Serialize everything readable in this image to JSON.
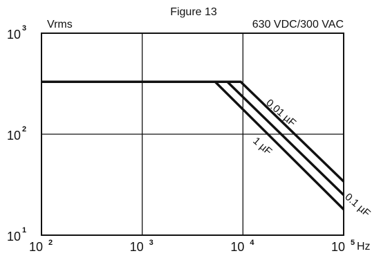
{
  "chart_data": {
    "type": "line",
    "title": "Figure 13",
    "rating": "630 VDC/300 VAC",
    "ylabel": "Vrms",
    "xlabel": "Hz",
    "xscale": "log",
    "yscale": "log",
    "xlim": [
      100,
      100000
    ],
    "ylim": [
      10,
      1000
    ],
    "grid": true,
    "x_ticks": [
      {
        "base": "10",
        "exp": "2"
      },
      {
        "base": "10",
        "exp": "3"
      },
      {
        "base": "10",
        "exp": "4"
      },
      {
        "base": "10",
        "exp": "5"
      }
    ],
    "y_ticks": [
      {
        "base": "10",
        "exp": "1"
      },
      {
        "base": "10",
        "exp": "2"
      },
      {
        "base": "10",
        "exp": "3"
      }
    ],
    "series": [
      {
        "name": "0.01 µF",
        "x": [
          100,
          9500,
          100000
        ],
        "y": [
          330,
          330,
          34
        ]
      },
      {
        "name": "0.1 µF",
        "x": [
          100,
          7000,
          100000
        ],
        "y": [
          330,
          330,
          25
        ]
      },
      {
        "name": "1 µF",
        "x": [
          100,
          5300,
          100000
        ],
        "y": [
          330,
          330,
          18
        ]
      }
    ]
  }
}
